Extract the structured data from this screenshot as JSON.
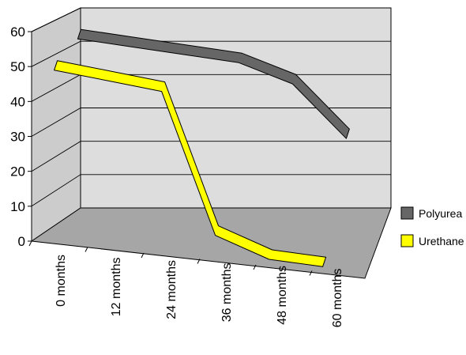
{
  "chart_data": {
    "type": "line",
    "style": "3d-ribbon",
    "categories": [
      "0 months",
      "12 months",
      "24 months",
      "36 months",
      "48 months",
      "60 months"
    ],
    "series": [
      {
        "name": "Polyurea",
        "values": [
          56,
          54,
          52,
          50,
          44,
          28
        ],
        "color": "#666666"
      },
      {
        "name": "Urethane",
        "values": [
          52,
          50,
          48,
          6,
          0,
          -1
        ],
        "color": "#ffff00"
      }
    ],
    "title": "",
    "xlabel": "",
    "ylabel": "",
    "yticks": [
      0,
      10,
      20,
      30,
      40,
      50,
      60
    ],
    "ylim": [
      0,
      60
    ],
    "grid": true,
    "legend_position": "right",
    "colors": {
      "back_wall": "#dddddd",
      "side_wall": "#cccccc",
      "floor": "#a6a6a6",
      "gridline": "#000000"
    }
  }
}
